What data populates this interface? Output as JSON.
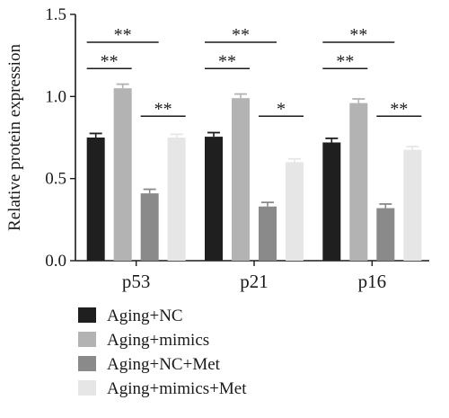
{
  "chart_data": {
    "type": "bar",
    "title": "",
    "xlabel": "",
    "ylabel": "Relative protein expression",
    "ylim": [
      0,
      1.5
    ],
    "yticks": [
      "0.0",
      "0.5",
      "1.0",
      "1.5"
    ],
    "ytick_values": [
      0,
      0.5,
      1.0,
      1.5
    ],
    "categories": [
      "p53",
      "p21",
      "p16"
    ],
    "series": [
      {
        "name": "Aging+NC",
        "values": [
          0.75,
          0.755,
          0.72
        ],
        "errors": [
          0.025,
          0.025,
          0.025
        ],
        "color": "#1f1f1f"
      },
      {
        "name": "Aging+mimics",
        "values": [
          1.05,
          0.99,
          0.96
        ],
        "errors": [
          0.025,
          0.025,
          0.025
        ],
        "color": "#b3b3b3"
      },
      {
        "name": "Aging+NC+Met",
        "values": [
          0.41,
          0.33,
          0.32
        ],
        "errors": [
          0.025,
          0.025,
          0.025
        ],
        "color": "#8a8a8a"
      },
      {
        "name": "Aging+mimics+Met",
        "values": [
          0.75,
          0.6,
          0.675
        ],
        "errors": [
          0.02,
          0.02,
          0.02
        ],
        "color": "#e6e6e6"
      }
    ],
    "significance": [
      {
        "category": 0,
        "from": 0,
        "to": 2,
        "label": "**",
        "level": 1.33
      },
      {
        "category": 0,
        "from": 0,
        "to": 1,
        "label": "**",
        "level": 1.17
      },
      {
        "category": 0,
        "from": 2,
        "to": 3,
        "label": "**",
        "level": 0.88
      },
      {
        "category": 1,
        "from": 0,
        "to": 2,
        "label": "**",
        "level": 1.33
      },
      {
        "category": 1,
        "from": 0,
        "to": 1,
        "label": "**",
        "level": 1.17
      },
      {
        "category": 1,
        "from": 2,
        "to": 3,
        "label": "*",
        "level": 0.88
      },
      {
        "category": 2,
        "from": 0,
        "to": 2,
        "label": "**",
        "level": 1.33
      },
      {
        "category": 2,
        "from": 0,
        "to": 1,
        "label": "**",
        "level": 1.17
      },
      {
        "category": 2,
        "from": 2,
        "to": 3,
        "label": "**",
        "level": 0.88
      }
    ],
    "legend_position": "bottom-left",
    "grid": false
  }
}
